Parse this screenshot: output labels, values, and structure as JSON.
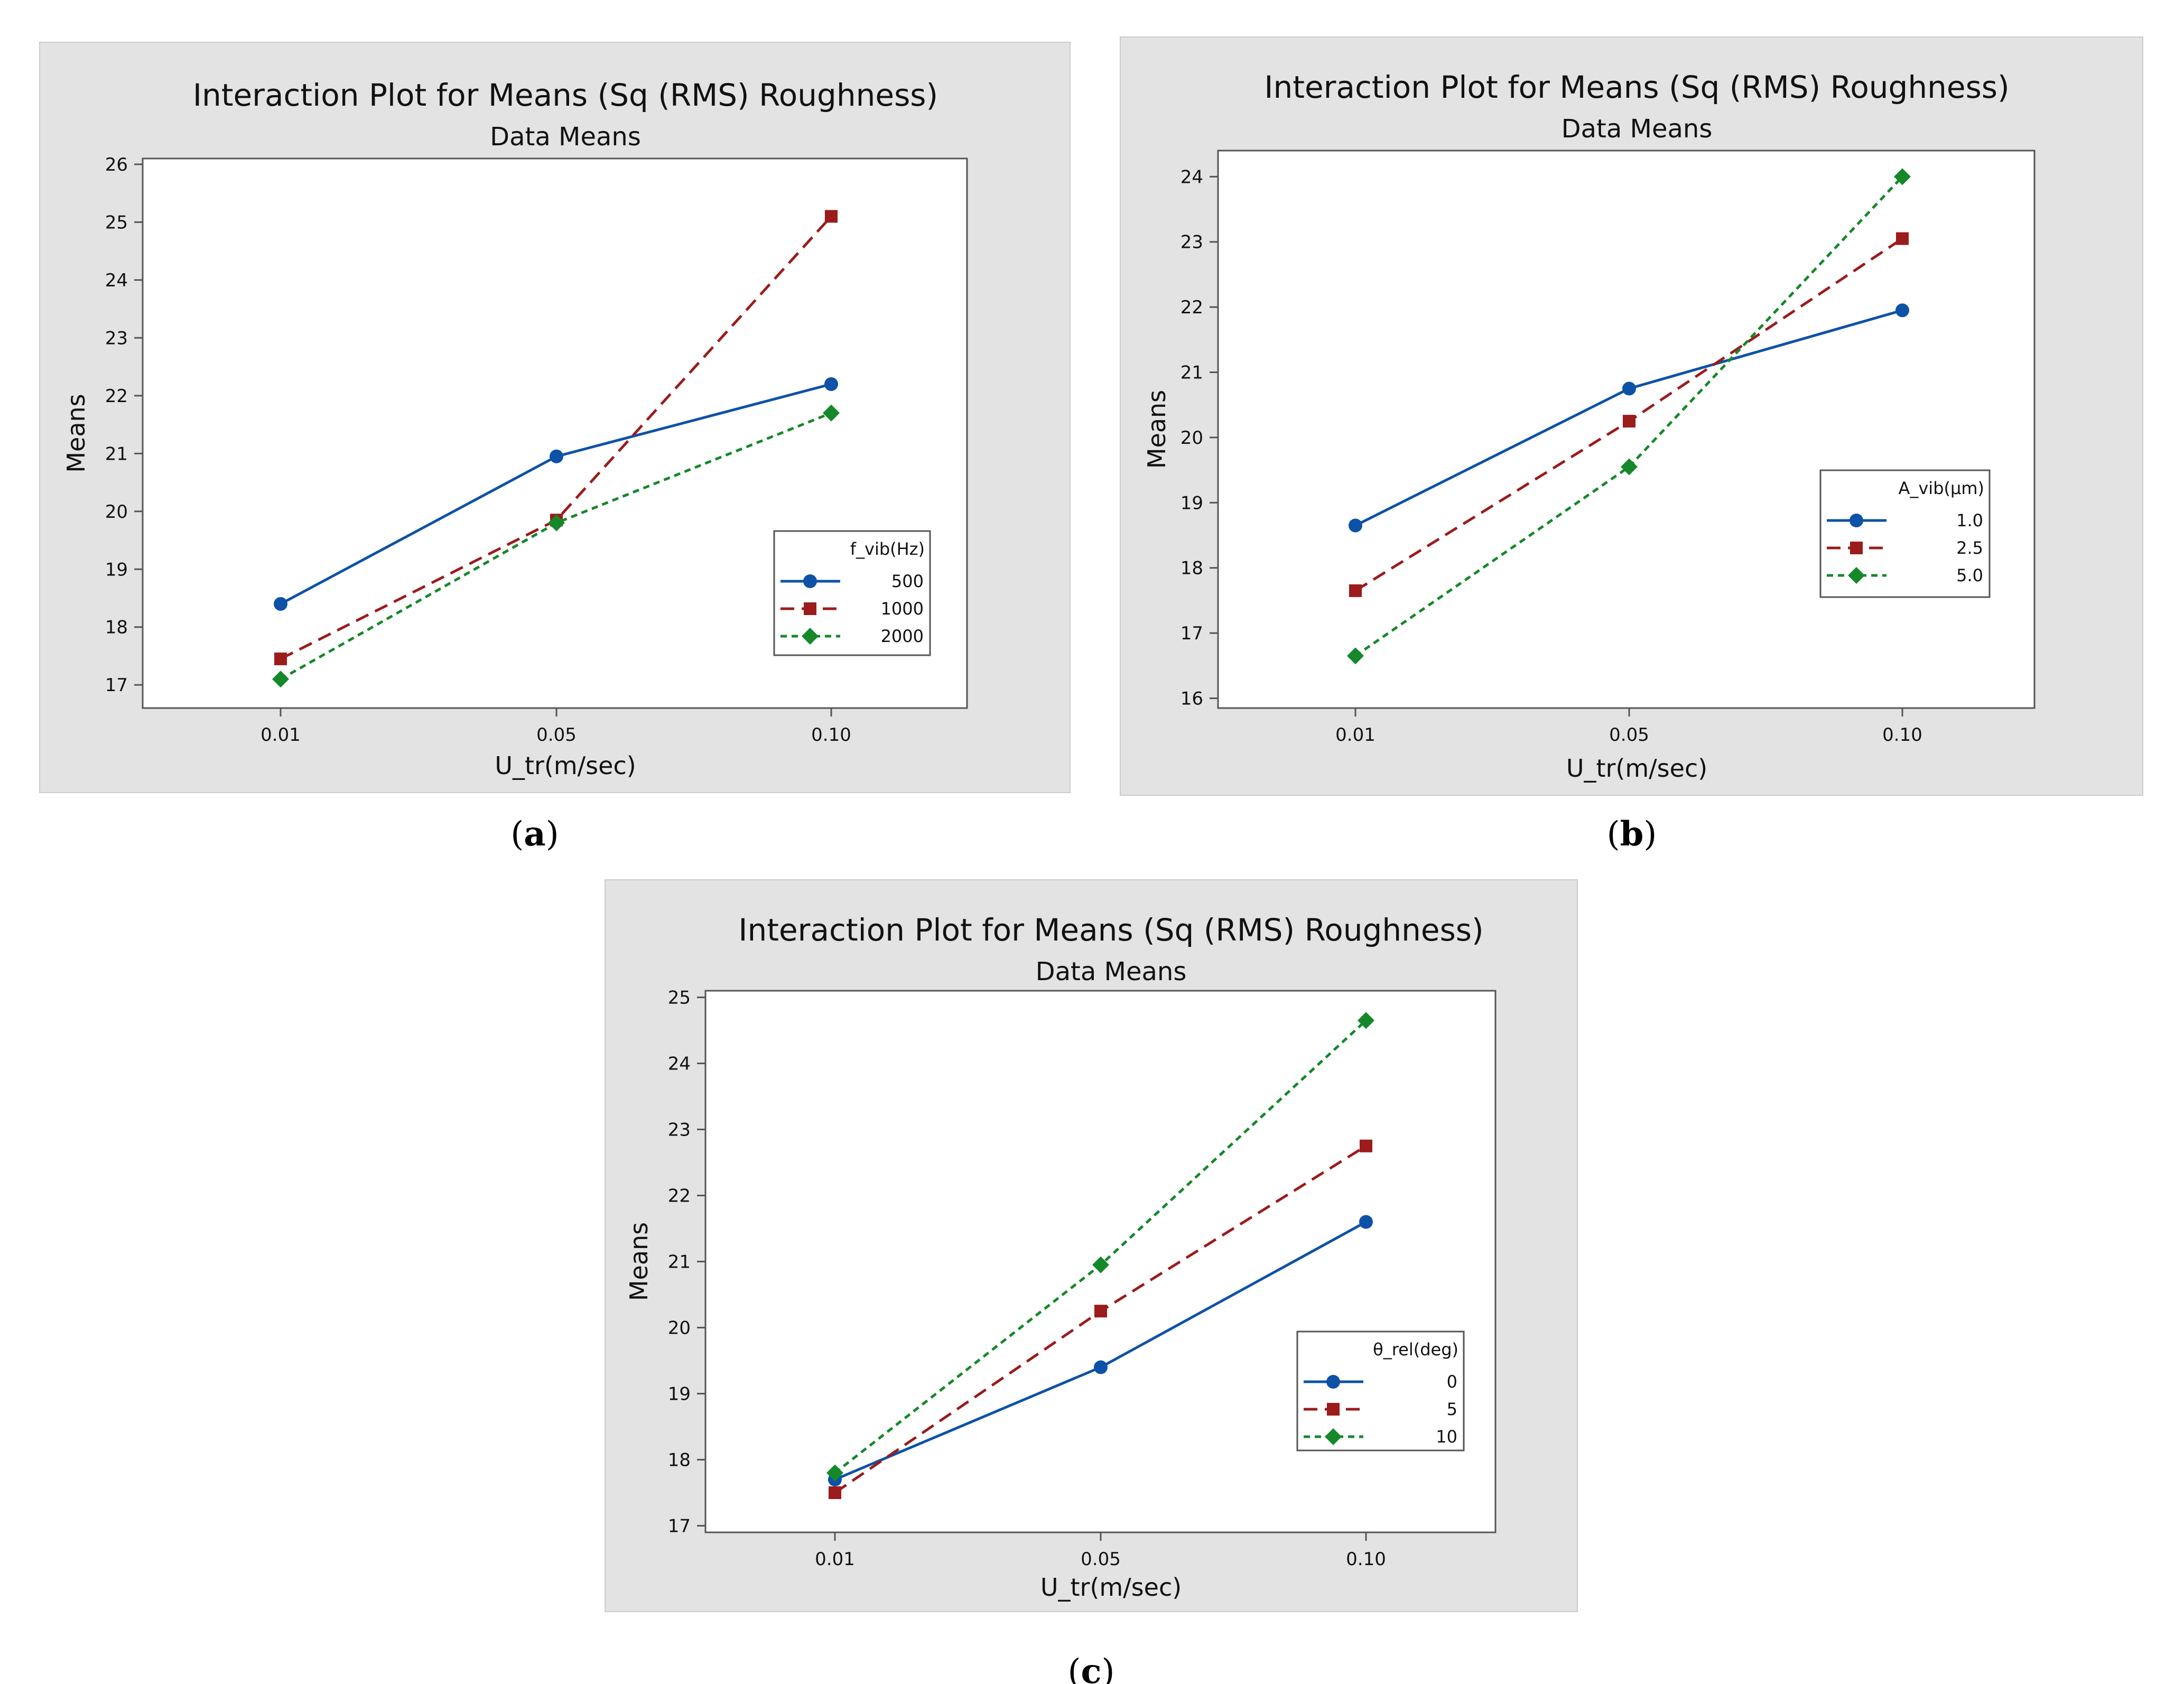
{
  "chart_data": [
    {
      "type": "line",
      "caption": "a",
      "title": "Interaction Plot for Means (Sq (RMS) Roughness)",
      "subtitle": "Data Means",
      "xlabel": "U_tr(m/sec)",
      "ylabel": "Means",
      "categories": [
        "0.01",
        "0.05",
        "0.10"
      ],
      "ylim": [
        16.6,
        26.1
      ],
      "yticks": [
        17,
        18,
        19,
        20,
        21,
        22,
        23,
        24,
        25,
        26
      ],
      "legend_title": "f_vib(Hz)",
      "legend_position": "bottom-right",
      "series": [
        {
          "name": "500",
          "values": [
            18.4,
            20.95,
            22.2
          ],
          "color": "#0d52a6",
          "marker": "circle",
          "dash": "solid"
        },
        {
          "name": "1000",
          "values": [
            17.45,
            19.85,
            25.1
          ],
          "color": "#9c1b1b",
          "marker": "square",
          "dash": "long-dash"
        },
        {
          "name": "2000",
          "values": [
            17.1,
            19.8,
            21.7
          ],
          "color": "#15882a",
          "marker": "diamond",
          "dash": "short-dash"
        }
      ]
    },
    {
      "type": "line",
      "caption": "b",
      "title": "Interaction Plot for Means (Sq (RMS) Roughness)",
      "subtitle": "Data Means",
      "xlabel": "U_tr(m/sec)",
      "ylabel": "Means",
      "categories": [
        "0.01",
        "0.05",
        "0.10"
      ],
      "ylim": [
        15.85,
        24.4
      ],
      "yticks": [
        16,
        17,
        18,
        19,
        20,
        21,
        22,
        23,
        24
      ],
      "legend_title": "A_vib(μm)",
      "legend_position": "middle-right",
      "series": [
        {
          "name": "1.0",
          "values": [
            18.65,
            20.75,
            21.95
          ],
          "color": "#0d52a6",
          "marker": "circle",
          "dash": "solid"
        },
        {
          "name": "2.5",
          "values": [
            17.65,
            20.25,
            23.05
          ],
          "color": "#9c1b1b",
          "marker": "square",
          "dash": "long-dash"
        },
        {
          "name": "5.0",
          "values": [
            16.65,
            19.55,
            24.0
          ],
          "color": "#15882a",
          "marker": "diamond",
          "dash": "short-dash"
        }
      ]
    },
    {
      "type": "line",
      "caption": "c",
      "title": "Interaction Plot for Means (Sq (RMS) Roughness)",
      "subtitle": "Data Means",
      "xlabel": "U_tr(m/sec)",
      "ylabel": "Means",
      "categories": [
        "0.01",
        "0.05",
        "0.10"
      ],
      "ylim": [
        16.9,
        25.1
      ],
      "yticks": [
        17,
        18,
        19,
        20,
        21,
        22,
        23,
        24,
        25
      ],
      "legend_title": "θ_rel(deg)",
      "legend_position": "bottom-right",
      "series": [
        {
          "name": "0",
          "values": [
            17.7,
            19.4,
            21.6
          ],
          "color": "#0d52a6",
          "marker": "circle",
          "dash": "solid"
        },
        {
          "name": "5",
          "values": [
            17.5,
            20.25,
            22.75
          ],
          "color": "#9c1b1b",
          "marker": "square",
          "dash": "long-dash"
        },
        {
          "name": "10",
          "values": [
            17.8,
            20.95,
            24.65
          ],
          "color": "#15882a",
          "marker": "diamond",
          "dash": "short-dash"
        }
      ]
    }
  ]
}
